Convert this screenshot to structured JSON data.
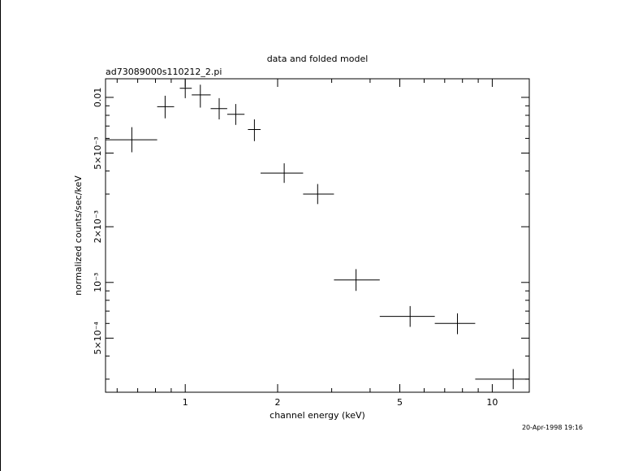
{
  "chart_data": {
    "type": "scatter",
    "title": "data and folded model",
    "subtitle": "ad73089000s110212_2.pi",
    "xlabel": "channel energy (keV)",
    "ylabel": "normalized counts/sec/keV",
    "timestamp": "20-Apr-1998 19:16",
    "x_scale": "log",
    "y_scale": "log",
    "xlim": [
      0.55,
      13.2
    ],
    "ylim": [
      0.000255,
      0.0126
    ],
    "grid": false,
    "legend": "none",
    "x_ticks": [
      {
        "value": 1,
        "label": "1"
      },
      {
        "value": 2,
        "label": "2"
      },
      {
        "value": 5,
        "label": "5"
      },
      {
        "value": 10,
        "label": "10"
      }
    ],
    "y_ticks": [
      {
        "value": 0.01,
        "label": "0.01"
      },
      {
        "value": 0.005,
        "label": "5×10⁻³"
      },
      {
        "value": 0.002,
        "label": "2×10⁻³"
      },
      {
        "value": 0.001,
        "label": "10⁻³"
      },
      {
        "value": 0.0005,
        "label": "5×10⁻⁴"
      }
    ],
    "series": [
      {
        "points": [
          {
            "x": 0.67,
            "x_lo": 0.55,
            "x_hi": 0.81,
            "y": 0.0059,
            "y_lo": 0.00505,
            "y_hi": 0.0069
          },
          {
            "x": 0.86,
            "x_lo": 0.81,
            "x_hi": 0.92,
            "y": 0.0089,
            "y_lo": 0.0077,
            "y_hi": 0.0102
          },
          {
            "x": 1.0,
            "x_lo": 0.96,
            "x_hi": 1.05,
            "y": 0.0112,
            "y_lo": 0.0099,
            "y_hi": 0.0125
          },
          {
            "x": 1.12,
            "x_lo": 1.05,
            "x_hi": 1.21,
            "y": 0.0103,
            "y_lo": 0.0088,
            "y_hi": 0.0117
          },
          {
            "x": 1.29,
            "x_lo": 1.21,
            "x_hi": 1.37,
            "y": 0.0087,
            "y_lo": 0.0076,
            "y_hi": 0.0099
          },
          {
            "x": 1.46,
            "x_lo": 1.37,
            "x_hi": 1.56,
            "y": 0.0081,
            "y_lo": 0.0071,
            "y_hi": 0.0092
          },
          {
            "x": 1.68,
            "x_lo": 1.6,
            "x_hi": 1.76,
            "y": 0.0067,
            "y_lo": 0.0058,
            "y_hi": 0.0076
          },
          {
            "x": 2.1,
            "x_lo": 1.76,
            "x_hi": 2.42,
            "y": 0.0039,
            "y_lo": 0.00345,
            "y_hi": 0.0044
          },
          {
            "x": 2.7,
            "x_lo": 2.42,
            "x_hi": 3.05,
            "y": 0.003,
            "y_lo": 0.00265,
            "y_hi": 0.0034
          },
          {
            "x": 3.6,
            "x_lo": 3.05,
            "x_hi": 4.3,
            "y": 0.00103,
            "y_lo": 0.0009,
            "y_hi": 0.00118
          },
          {
            "x": 5.4,
            "x_lo": 4.3,
            "x_hi": 6.5,
            "y": 0.000655,
            "y_lo": 0.000575,
            "y_hi": 0.000745
          },
          {
            "x": 7.7,
            "x_lo": 6.5,
            "x_hi": 8.8,
            "y": 0.0006,
            "y_lo": 0.000525,
            "y_hi": 0.00068
          },
          {
            "x": 11.7,
            "x_lo": 8.8,
            "x_hi": 13.2,
            "y": 0.0003,
            "y_lo": 0.000265,
            "y_hi": 0.00034
          }
        ]
      }
    ]
  }
}
